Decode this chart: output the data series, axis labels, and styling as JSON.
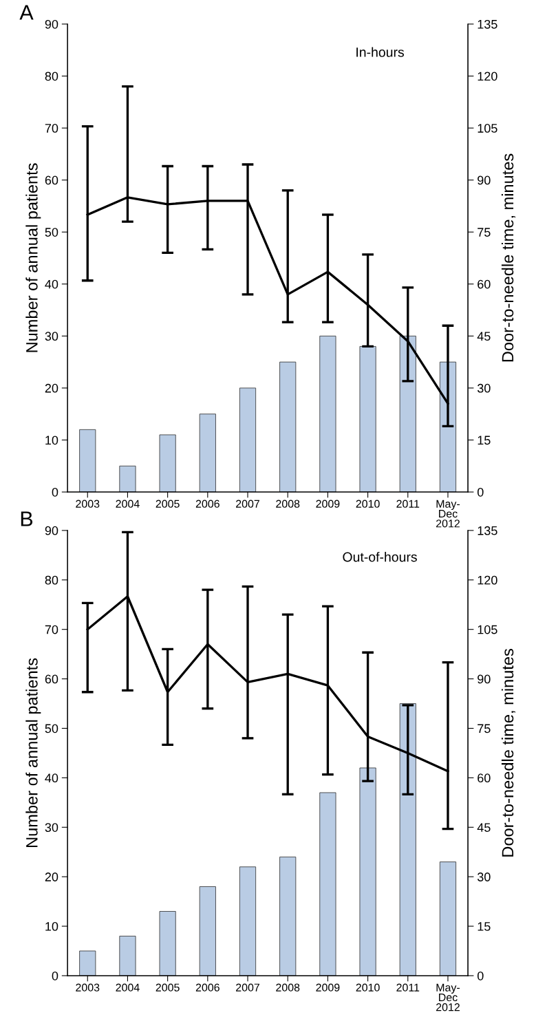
{
  "chart_data": [
    {
      "type": "bar",
      "title": "A",
      "annotations": [
        "In-hours"
      ],
      "ylabel": "Number of annual patients",
      "y2label": "Door-to-needle time, minutes",
      "categories": [
        "2003",
        "2004",
        "2005",
        "2006",
        "2007",
        "2008",
        "2009",
        "2010",
        "2011",
        "May-\nDec\n2012"
      ],
      "ylim": [
        0,
        90
      ],
      "yticks": [
        0,
        10,
        20,
        30,
        40,
        50,
        60,
        70,
        80,
        90
      ],
      "y2lim": [
        0,
        135
      ],
      "y2ticks": [
        0,
        15,
        30,
        45,
        60,
        75,
        90,
        105,
        120,
        135
      ],
      "grid": false,
      "legend": false,
      "marker": "none",
      "line_style": "solid",
      "series": [
        {
          "color": "#b9cce4",
          "values": [
            12,
            5,
            11,
            15,
            20,
            25,
            30,
            28,
            30,
            25
          ]
        },
        {
          "type": "line",
          "axis": "y2",
          "color": "#000000",
          "values": [
            80,
            85,
            83,
            84,
            84,
            57,
            63.5,
            54,
            43.5,
            25.5
          ],
          "errors": [
            [
              61,
              105.5
            ],
            [
              78,
              117
            ],
            [
              69,
              94
            ],
            [
              70,
              94
            ],
            [
              57,
              94.5
            ],
            [
              49,
              87
            ],
            [
              49,
              80
            ],
            [
              42,
              68.5
            ],
            [
              32,
              59
            ],
            [
              19,
              48
            ]
          ]
        }
      ]
    },
    {
      "type": "bar",
      "title": "B",
      "annotations": [
        "Out-of-hours"
      ],
      "ylabel": "Number of annual patients",
      "y2label": "Door-to-needle time, minutes",
      "categories": [
        "2003",
        "2004",
        "2005",
        "2006",
        "2007",
        "2008",
        "2009",
        "2010",
        "2011",
        "May-\nDec\n2012"
      ],
      "ylim": [
        0,
        90
      ],
      "yticks": [
        0,
        10,
        20,
        30,
        40,
        50,
        60,
        70,
        80,
        90
      ],
      "y2lim": [
        0,
        135
      ],
      "y2ticks": [
        0,
        15,
        30,
        45,
        60,
        75,
        90,
        105,
        120,
        135
      ],
      "grid": false,
      "legend": false,
      "marker": "none",
      "line_style": "solid",
      "series": [
        {
          "color": "#b9cce4",
          "values": [
            5,
            8,
            13,
            18,
            22,
            24,
            37,
            42,
            55,
            23
          ]
        },
        {
          "type": "line",
          "axis": "y2",
          "color": "#000000",
          "values": [
            105,
            115,
            86,
            100.5,
            89,
            91.5,
            88,
            72.5,
            67.5,
            62
          ],
          "errors": [
            [
              86,
              113
            ],
            [
              86.5,
              134.5
            ],
            [
              70,
              99
            ],
            [
              81,
              117
            ],
            [
              72,
              118
            ],
            [
              55,
              109.5
            ],
            [
              61,
              112
            ],
            [
              59,
              98
            ],
            [
              55,
              82
            ],
            [
              44.5,
              95
            ]
          ]
        }
      ]
    }
  ]
}
